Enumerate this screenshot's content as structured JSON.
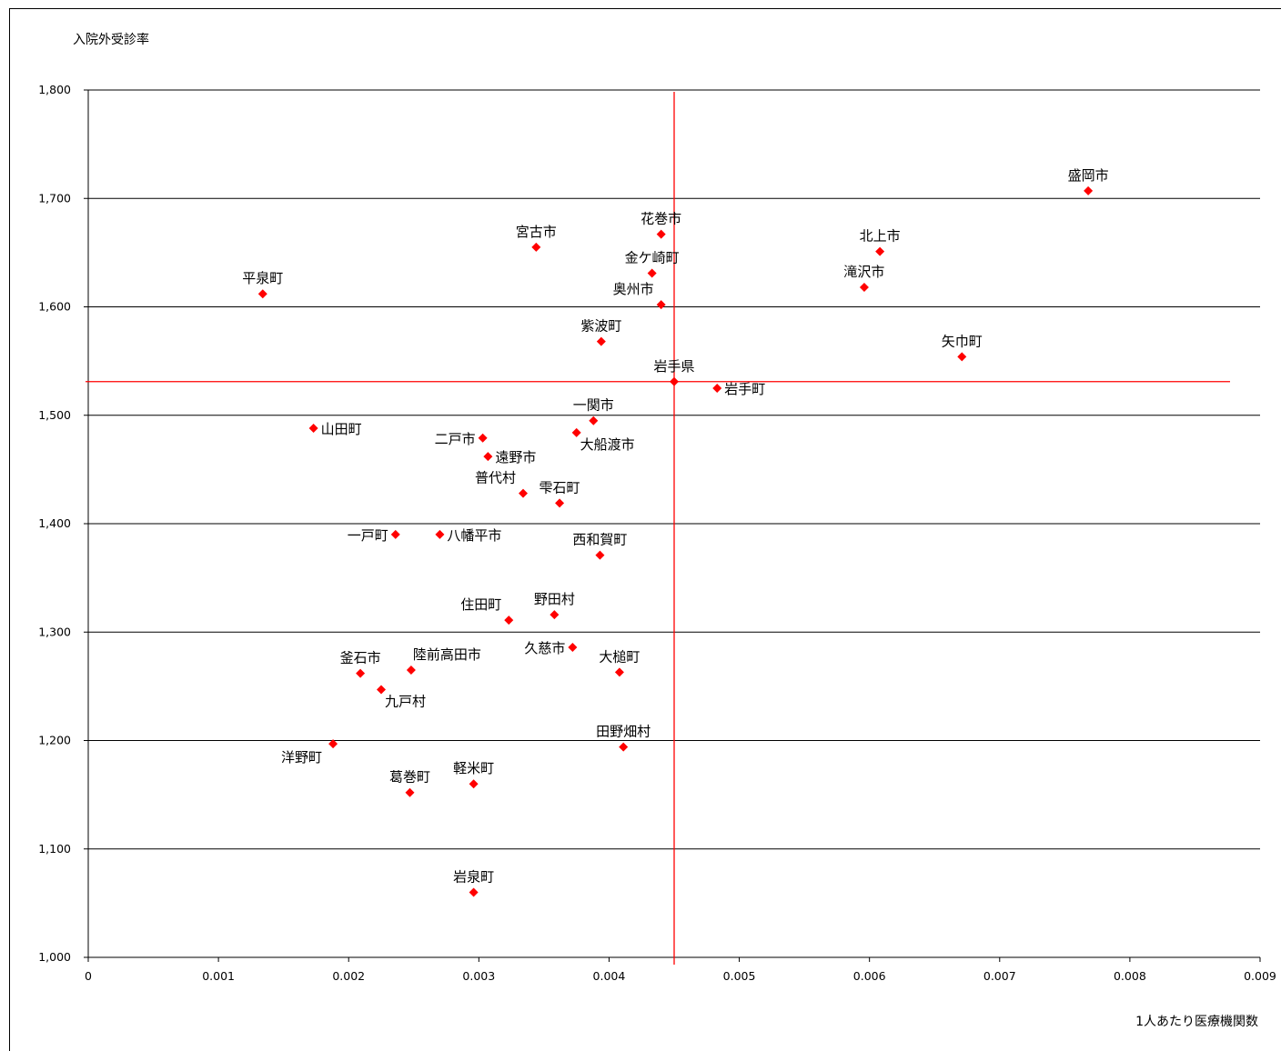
{
  "chart_data": {
    "type": "scatter",
    "ylabel": "入院外受診率",
    "xlabel": "1人あたり医療機関数",
    "xlim": [
      0,
      0.009
    ],
    "ylim": [
      1000,
      1800
    ],
    "x_ticks": [
      "0",
      "0.001",
      "0.002",
      "0.003",
      "0.004",
      "0.005",
      "0.006",
      "0.007",
      "0.008",
      "0.009"
    ],
    "y_ticks": [
      "1,000",
      "1,100",
      "1,200",
      "1,300",
      "1,400",
      "1,500",
      "1,600",
      "1,700",
      "1,800"
    ],
    "grid": "horizontal",
    "marker_color": "#ff0000",
    "reference_line_color": "#ff0000",
    "reference_lines": {
      "x": 0.0045,
      "y": 1531
    },
    "points": [
      {
        "name": "盛岡市",
        "x": 0.00768,
        "y": 1707,
        "label_pos": "above"
      },
      {
        "name": "北上市",
        "x": 0.00608,
        "y": 1651,
        "label_pos": "above"
      },
      {
        "name": "滝沢市",
        "x": 0.00596,
        "y": 1618,
        "label_pos": "above"
      },
      {
        "name": "矢巾町",
        "x": 0.00671,
        "y": 1554,
        "label_pos": "above"
      },
      {
        "name": "花巻市",
        "x": 0.0044,
        "y": 1667,
        "label_pos": "above"
      },
      {
        "name": "金ケ崎町",
        "x": 0.00433,
        "y": 1631,
        "label_pos": "above"
      },
      {
        "name": "奥州市",
        "x": 0.0044,
        "y": 1602,
        "label_pos": "above-left"
      },
      {
        "name": "宮古市",
        "x": 0.00344,
        "y": 1655,
        "label_pos": "above"
      },
      {
        "name": "平泉町",
        "x": 0.00134,
        "y": 1612,
        "label_pos": "above"
      },
      {
        "name": "紫波町",
        "x": 0.00394,
        "y": 1568,
        "label_pos": "above"
      },
      {
        "name": "岩手県",
        "x": 0.0045,
        "y": 1531,
        "label_pos": "above"
      },
      {
        "name": "岩手町",
        "x": 0.00483,
        "y": 1525,
        "label_pos": "right"
      },
      {
        "name": "一関市",
        "x": 0.00388,
        "y": 1495,
        "label_pos": "above"
      },
      {
        "name": "大船渡市",
        "x": 0.00375,
        "y": 1484,
        "label_pos": "right-below"
      },
      {
        "name": "山田町",
        "x": 0.00173,
        "y": 1488,
        "label_pos": "right"
      },
      {
        "name": "二戸市",
        "x": 0.00303,
        "y": 1479,
        "label_pos": "left"
      },
      {
        "name": "遠野市",
        "x": 0.00307,
        "y": 1462,
        "label_pos": "right"
      },
      {
        "name": "普代村",
        "x": 0.00334,
        "y": 1428,
        "label_pos": "above-left"
      },
      {
        "name": "雫石町",
        "x": 0.00362,
        "y": 1419,
        "label_pos": "above"
      },
      {
        "name": "一戸町",
        "x": 0.00236,
        "y": 1390,
        "label_pos": "left"
      },
      {
        "name": "八幡平市",
        "x": 0.0027,
        "y": 1390,
        "label_pos": "right"
      },
      {
        "name": "西和賀町",
        "x": 0.00393,
        "y": 1371,
        "label_pos": "above"
      },
      {
        "name": "住田町",
        "x": 0.00323,
        "y": 1311,
        "label_pos": "above-left"
      },
      {
        "name": "野田村",
        "x": 0.00358,
        "y": 1316,
        "label_pos": "above"
      },
      {
        "name": "久慈市",
        "x": 0.00372,
        "y": 1286,
        "label_pos": "left"
      },
      {
        "name": "大槌町",
        "x": 0.00408,
        "y": 1263,
        "label_pos": "above"
      },
      {
        "name": "陸前高田市",
        "x": 0.00248,
        "y": 1265,
        "label_pos": "above-right"
      },
      {
        "name": "釜石市",
        "x": 0.00209,
        "y": 1262,
        "label_pos": "above"
      },
      {
        "name": "九戸村",
        "x": 0.00225,
        "y": 1247,
        "label_pos": "right-below"
      },
      {
        "name": "田野畑村",
        "x": 0.00411,
        "y": 1194,
        "label_pos": "above"
      },
      {
        "name": "洋野町",
        "x": 0.00188,
        "y": 1197,
        "label_pos": "left-below"
      },
      {
        "name": "葛巻町",
        "x": 0.00247,
        "y": 1152,
        "label_pos": "above"
      },
      {
        "name": "軽米町",
        "x": 0.00296,
        "y": 1160,
        "label_pos": "above"
      },
      {
        "name": "岩泉町",
        "x": 0.00296,
        "y": 1060,
        "label_pos": "above"
      }
    ]
  }
}
